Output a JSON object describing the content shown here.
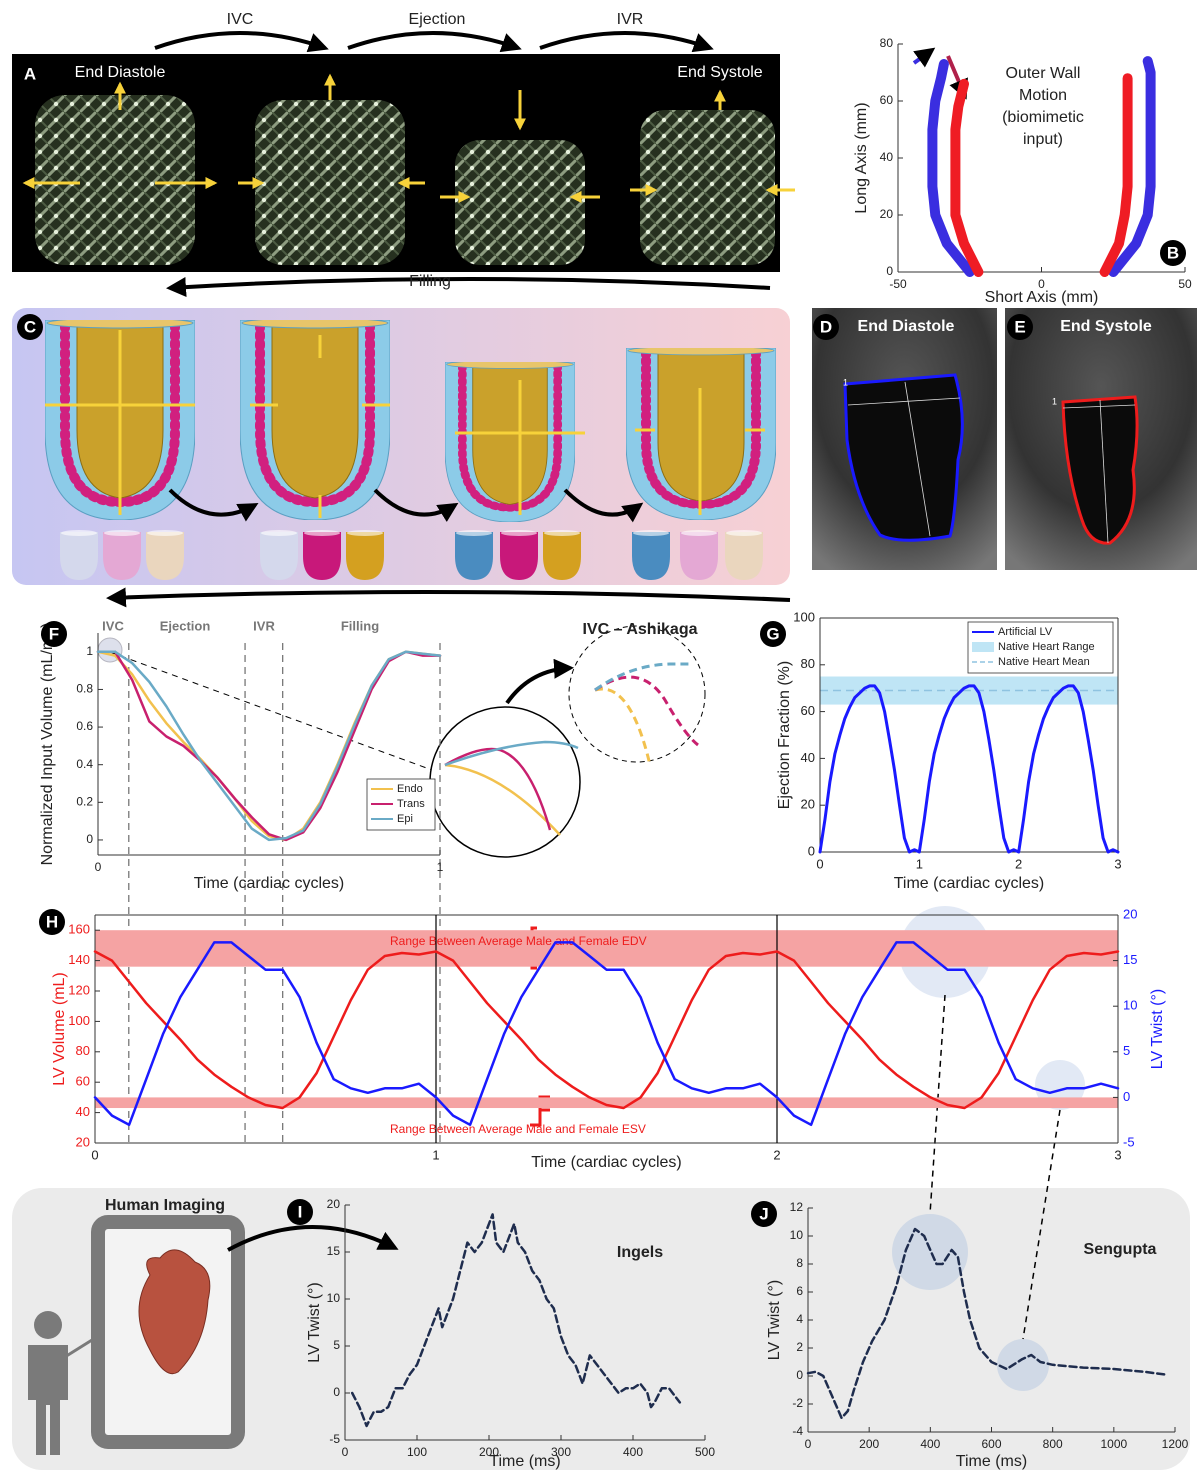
{
  "figure": {
    "panel_labels": [
      "A",
      "B",
      "C",
      "D",
      "E",
      "F",
      "G",
      "H",
      "I",
      "J"
    ],
    "phases": [
      "IVC",
      "Ejection",
      "IVR",
      "Filling"
    ],
    "states": [
      "End Diastole",
      "End Systole"
    ],
    "echo_labels": [
      "End Diastole",
      "End Systole"
    ],
    "echo_marker": "1",
    "human_imaging": "Human Imaging"
  },
  "chart_data": [
    {
      "type": "line",
      "xlabel": "Short Axis (mm)",
      "ylabel": "Long Axis (mm)",
      "annotations": [
        "Outer Wall",
        "Motion",
        "(biomimetic",
        "input)"
      ],
      "xlim": [
        -50,
        50
      ],
      "xticks": [
        -50,
        0,
        50
      ],
      "ylim": [
        0,
        80
      ],
      "yticks": [
        0,
        20,
        40,
        60,
        80
      ],
      "grid": false,
      "series": [
        {
          "color": "#3a2ee0",
          "x": [
            -25,
            -33,
            -37,
            -38,
            -38,
            -38,
            -37,
            -35,
            -34
          ],
          "values": [
            0,
            10,
            20,
            30,
            40,
            50,
            60,
            68,
            73
          ]
        },
        {
          "color": "#ef1c24",
          "x": [
            -22,
            -27,
            -30,
            -30,
            -30,
            -30,
            -29,
            -27
          ],
          "values": [
            0,
            10,
            20,
            30,
            40,
            50,
            58,
            66
          ]
        },
        {
          "color": "#3a2ee0",
          "x": [
            25,
            33,
            37,
            38,
            38,
            38,
            38,
            38,
            37
          ],
          "values": [
            0,
            10,
            20,
            30,
            40,
            50,
            60,
            70,
            74
          ]
        },
        {
          "color": "#ef1c24",
          "x": [
            22,
            27,
            29,
            30,
            30,
            30,
            30,
            30
          ],
          "values": [
            0,
            10,
            20,
            30,
            40,
            50,
            60,
            68
          ]
        }
      ]
    },
    {
      "type": "line",
      "xlabel": "Time (cardiac cycles)",
      "ylabel": "Normalized Input Volume (mL/mL)",
      "annotations": [
        "IVC",
        "Ejection",
        "IVR",
        "Filling",
        "IVC – Ashikaga"
      ],
      "xlim": [
        0,
        1
      ],
      "xticks": [
        0,
        1
      ],
      "ylim": [
        -0.08,
        1.1
      ],
      "yticks": [
        0,
        0.2,
        0.4,
        0.6,
        0.8,
        1
      ],
      "grid": false,
      "phase_lines": [
        0.09,
        0.43,
        0.54,
        1
      ],
      "legend": "bottom-right",
      "x": [
        0,
        0.05,
        0.1,
        0.15,
        0.2,
        0.25,
        0.3,
        0.35,
        0.4,
        0.45,
        0.5,
        0.55,
        0.6,
        0.65,
        0.7,
        0.75,
        0.8,
        0.85,
        0.9,
        0.95,
        1
      ],
      "series": [
        {
          "name": "Endo",
          "color": "#f2c14e",
          "values": [
            1,
            0.98,
            0.88,
            0.74,
            0.62,
            0.52,
            0.43,
            0.33,
            0.22,
            0.1,
            0.02,
            0,
            0.06,
            0.2,
            0.4,
            0.62,
            0.82,
            0.96,
            1,
            0.99,
            0.98
          ]
        },
        {
          "name": "Trans",
          "color": "#c8206e",
          "values": [
            1,
            1,
            0.85,
            0.63,
            0.55,
            0.5,
            0.42,
            0.33,
            0.22,
            0.12,
            0.03,
            0,
            0.04,
            0.17,
            0.36,
            0.58,
            0.8,
            0.95,
            1,
            0.98,
            0.98
          ]
        },
        {
          "name": "Epi",
          "color": "#6aaac6",
          "values": [
            1,
            1,
            0.94,
            0.84,
            0.71,
            0.56,
            0.42,
            0.3,
            0.18,
            0.06,
            0,
            0.01,
            0.05,
            0.19,
            0.39,
            0.61,
            0.82,
            0.96,
            1,
            0.99,
            0.98
          ]
        }
      ]
    },
    {
      "type": "line",
      "xlabel": "Time (cardiac cycles)",
      "ylabel": "Ejection Fraction (%)",
      "xlim": [
        0,
        3
      ],
      "xticks": [
        0,
        1,
        2,
        3
      ],
      "ylim": [
        0,
        100
      ],
      "yticks": [
        0,
        20,
        40,
        60,
        80,
        100
      ],
      "grid": false,
      "legend": "top-right",
      "x": [
        0,
        0.05,
        0.1,
        0.15,
        0.2,
        0.25,
        0.3,
        0.35,
        0.4,
        0.45,
        0.5,
        0.55,
        0.6,
        0.65,
        0.7,
        0.75,
        0.8,
        0.85,
        0.9,
        0.95,
        1,
        1.05,
        1.1,
        1.15,
        1.2,
        1.25,
        1.3,
        1.35,
        1.4,
        1.45,
        1.5,
        1.55,
        1.6,
        1.65,
        1.7,
        1.75,
        1.8,
        1.85,
        1.9,
        1.95,
        2,
        2.05,
        2.1,
        2.15,
        2.2,
        2.25,
        2.3,
        2.35,
        2.4,
        2.45,
        2.5,
        2.55,
        2.6,
        2.65,
        2.7,
        2.75,
        2.8,
        2.85,
        2.9,
        2.95,
        3
      ],
      "series": [
        {
          "name": "Artificial LV",
          "color": "#1a1aff",
          "values": [
            0,
            14,
            30,
            42,
            50,
            57,
            62,
            66,
            68,
            70,
            71,
            71,
            68,
            60,
            48,
            35,
            20,
            6,
            0,
            1,
            0,
            14,
            30,
            42,
            50,
            57,
            62,
            66,
            68,
            70,
            71,
            71,
            68,
            60,
            48,
            35,
            20,
            6,
            0,
            1,
            0,
            14,
            30,
            42,
            50,
            57,
            62,
            66,
            68,
            70,
            71,
            71,
            68,
            60,
            48,
            35,
            20,
            6,
            0,
            1,
            0
          ]
        }
      ],
      "bands": [
        {
          "name": "Native Heart Range",
          "color": "#bfe5f5",
          "values": [
            63,
            75
          ]
        }
      ],
      "hlines": [
        {
          "name": "Native Heart Mean",
          "color": "#8fc3e0",
          "value": 69
        }
      ]
    },
    {
      "type": "line",
      "xlabel": "Time (cardiac cycles)",
      "ylabel": "LV Volume (mL)",
      "y2label": "LV Twist (°)",
      "xlim": [
        0,
        3
      ],
      "xticks": [
        0,
        1,
        2,
        3
      ],
      "ylim": [
        20,
        170
      ],
      "yticks": [
        20,
        40,
        60,
        80,
        100,
        120,
        140,
        160
      ],
      "y2lim": [
        -5,
        20
      ],
      "y2ticks": [
        -5,
        0,
        5,
        10,
        15,
        20
      ],
      "grid": false,
      "x": [
        0,
        0.05,
        0.1,
        0.15,
        0.2,
        0.25,
        0.3,
        0.35,
        0.4,
        0.45,
        0.5,
        0.55,
        0.6,
        0.65,
        0.7,
        0.75,
        0.8,
        0.85,
        0.9,
        0.95,
        1,
        1.05,
        1.1,
        1.15,
        1.2,
        1.25,
        1.3,
        1.35,
        1.4,
        1.45,
        1.5,
        1.55,
        1.6,
        1.65,
        1.7,
        1.75,
        1.8,
        1.85,
        1.9,
        1.95,
        2,
        2.05,
        2.1,
        2.15,
        2.2,
        2.25,
        2.3,
        2.35,
        2.4,
        2.45,
        2.5,
        2.55,
        2.6,
        2.65,
        2.7,
        2.75,
        2.8,
        2.85,
        2.9,
        2.95,
        3
      ],
      "series": [
        {
          "color": "#ee1c1c",
          "values": [
            146,
            140,
            126,
            112,
            100,
            88,
            75,
            65,
            57,
            50,
            45,
            43,
            50,
            66,
            90,
            114,
            134,
            143,
            145,
            144,
            146,
            140,
            126,
            112,
            100,
            88,
            75,
            65,
            57,
            50,
            45,
            43,
            50,
            66,
            90,
            114,
            134,
            143,
            145,
            144,
            146,
            140,
            126,
            112,
            100,
            88,
            75,
            65,
            57,
            50,
            45,
            43,
            50,
            66,
            90,
            114,
            134,
            143,
            145,
            144,
            146
          ]
        },
        {
          "color": "#1a1aff",
          "axis": "y2",
          "values": [
            0,
            -2,
            -3,
            2,
            7,
            11,
            14,
            17,
            17,
            15.5,
            14,
            14,
            11,
            6,
            2,
            1,
            0.5,
            1,
            1,
            1.5,
            0,
            -2,
            -3,
            2,
            7,
            11,
            14,
            17,
            17,
            15.5,
            14,
            14,
            11,
            6,
            2,
            1,
            0.5,
            1,
            1,
            1.5,
            0,
            -2,
            -3,
            2,
            7,
            11,
            14,
            17,
            17,
            15.5,
            14,
            14,
            11,
            6,
            2,
            1,
            0.5,
            1,
            1,
            1.5,
            1
          ]
        }
      ],
      "bands": [
        {
          "name": "Range Between Average Male and Female EDV",
          "color": "#f5a3a3",
          "values": [
            136,
            160
          ]
        },
        {
          "name": "Range Between Average Male and Female ESV",
          "color": "#f5a3a3",
          "values": [
            43,
            50
          ]
        }
      ]
    },
    {
      "type": "line",
      "xlabel": "Time (ms)",
      "ylabel": "LV Twist (°)",
      "annotations": [
        "Ingels"
      ],
      "xlim": [
        0,
        500
      ],
      "xticks": [
        0,
        100,
        200,
        300,
        400,
        500
      ],
      "ylim": [
        -5,
        20
      ],
      "yticks": [
        -5,
        0,
        5,
        10,
        15,
        20
      ],
      "grid": false,
      "line_style": "dashed",
      "x": [
        10,
        20,
        30,
        40,
        50,
        60,
        70,
        80,
        90,
        100,
        110,
        120,
        130,
        135,
        140,
        150,
        160,
        170,
        180,
        190,
        200,
        205,
        210,
        220,
        230,
        235,
        240,
        250,
        260,
        270,
        280,
        290,
        300,
        310,
        320,
        330,
        340,
        350,
        360,
        370,
        380,
        390,
        400,
        410,
        420,
        425,
        430,
        440,
        450,
        460,
        465
      ],
      "series": [
        {
          "color": "#1f2d4e",
          "values": [
            0,
            -1.5,
            -3.5,
            -2,
            -2,
            -1.5,
            0.5,
            0.5,
            2,
            3,
            5,
            7,
            9,
            7,
            8,
            10,
            13,
            16,
            15,
            16,
            18,
            19,
            16,
            15,
            17,
            18,
            16,
            15,
            13,
            12,
            10,
            9,
            6,
            4,
            3,
            1,
            4,
            3,
            2,
            1,
            0,
            0.5,
            0.5,
            1,
            0,
            -1.5,
            -1,
            0.5,
            0.5,
            -0.5,
            -1
          ]
        }
      ]
    },
    {
      "type": "line",
      "xlabel": "Time (ms)",
      "ylabel": "LV Twist (°)",
      "annotations": [
        "Sengupta"
      ],
      "xlim": [
        0,
        1200
      ],
      "xticks": [
        0,
        200,
        400,
        600,
        800,
        1000,
        1200
      ],
      "ylim": [
        -4,
        12
      ],
      "yticks": [
        -4,
        -2,
        0,
        2,
        4,
        6,
        8,
        10,
        12
      ],
      "grid": false,
      "line_style": "dashed",
      "x": [
        0,
        25,
        50,
        80,
        110,
        130,
        150,
        180,
        210,
        250,
        290,
        320,
        350,
        380,
        400,
        420,
        440,
        470,
        490,
        510,
        530,
        560,
        600,
        650,
        700,
        730,
        760,
        800,
        900,
        1000,
        1100,
        1170
      ],
      "series": [
        {
          "color": "#1f2d4e",
          "values": [
            0.2,
            0.3,
            0,
            -1.5,
            -3,
            -2.5,
            -1,
            1,
            2.5,
            4,
            6.5,
            9,
            10.5,
            10,
            9,
            8,
            8,
            9,
            8.5,
            6,
            4,
            2,
            1,
            0.5,
            1.2,
            1.5,
            1,
            0.8,
            0.6,
            0.5,
            0.3,
            0.1
          ]
        }
      ]
    }
  ]
}
